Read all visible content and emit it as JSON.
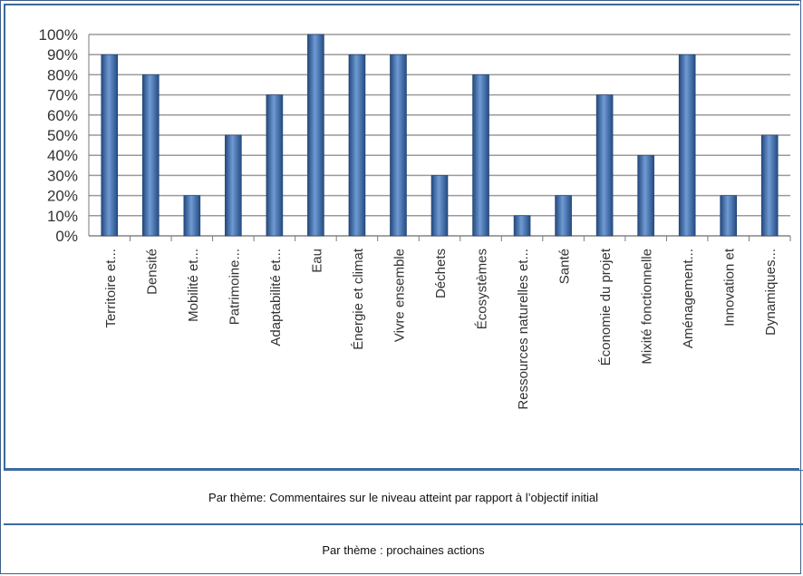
{
  "chart_data": {
    "type": "bar",
    "title": "",
    "xlabel": "",
    "ylabel": "",
    "ylim": [
      0,
      100
    ],
    "y_ticks": [
      "0%",
      "10%",
      "20%",
      "30%",
      "40%",
      "50%",
      "60%",
      "70%",
      "80%",
      "90%",
      "100%"
    ],
    "grid": true,
    "categories": [
      "Territoire et...",
      "Densité",
      "Mobilité et...",
      "Patrimoine...",
      "Adaptabilité et...",
      "Eau",
      "Énergie et climat",
      "Vivre ensemble",
      "Déchets",
      "Écosystèmes",
      "Ressources naturelles et...",
      "Santé",
      "Économie du projet",
      "Mixité fonctionnelle",
      "Aménagement...",
      "Innovation et",
      "Dynamiques..."
    ],
    "values": [
      90,
      80,
      20,
      50,
      70,
      100,
      90,
      90,
      30,
      80,
      10,
      20,
      70,
      40,
      90,
      20,
      50
    ],
    "colors": {
      "bar": "#2f5f9f",
      "bar_light": "#6f9ad3",
      "grid": "#9a9a9a"
    }
  },
  "table": {
    "row1": "Par thème: Commentaires sur le niveau atteint par rapport à l’objectif initial",
    "row2": "Par thème : prochaines actions"
  }
}
